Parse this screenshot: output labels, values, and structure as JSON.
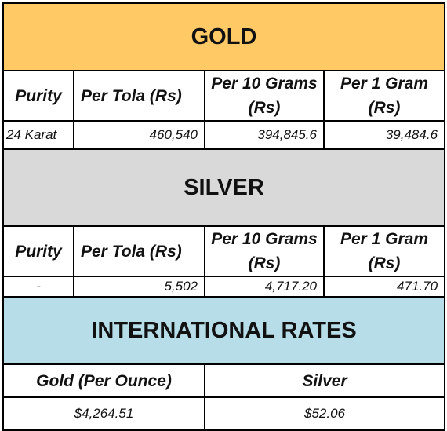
{
  "colors": {
    "gold_banner": "#ffc966",
    "silver_banner": "#d9d9d9",
    "international_banner": "#b7dde8",
    "border": "#000000"
  },
  "gold": {
    "title": "GOLD",
    "headers": [
      "Purity",
      "Per Tola (Rs)",
      "Per 10 Grams (Rs)",
      "Per 1 Gram (Rs)"
    ],
    "row": [
      "24 Karat",
      "460,540",
      "394,845.6",
      "39,484.6"
    ]
  },
  "silver": {
    "title": "SILVER",
    "headers": [
      "Purity",
      "Per Tola (Rs)",
      "Per 10 Grams (Rs)",
      "Per 1 Gram (Rs)"
    ],
    "row": [
      "-",
      "5,502",
      "4,717.20",
      "471.70"
    ]
  },
  "international": {
    "title": "INTERNATIONAL RATES",
    "headers": [
      "Gold (Per Ounce)",
      "Silver"
    ],
    "row": [
      "$4,264.51",
      "$52.06"
    ]
  }
}
